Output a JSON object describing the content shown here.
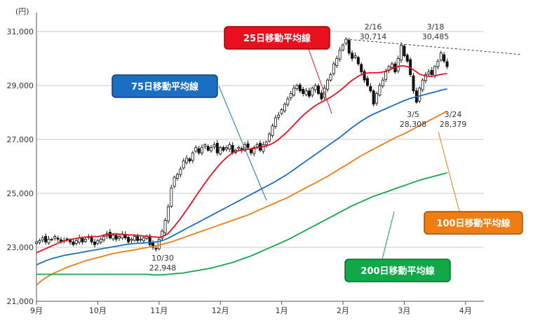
{
  "chart_data": {
    "type": "line",
    "title": "",
    "xlabel": "",
    "ylabel": "(円)",
    "ylim": [
      21000,
      31700
    ],
    "yticks": [
      21000,
      23000,
      25000,
      27000,
      29000,
      31000
    ],
    "ytick_labels": [
      "21,000",
      "23,000",
      "25,000",
      "27,000",
      "29,000",
      "31,000"
    ],
    "xtick_labels": [
      "9月",
      "10月",
      "11月",
      "12月",
      "1月",
      "2月",
      "3月",
      "4月"
    ],
    "month_start_index": [
      0,
      20,
      40,
      60,
      80,
      100,
      120,
      140
    ],
    "price_daily_close_approx": [
      23200,
      23250,
      23350,
      23200,
      23300,
      23300,
      23400,
      23300,
      23200,
      23250,
      23300,
      23200,
      23100,
      23250,
      23350,
      23200,
      23300,
      23400,
      23200,
      23100,
      23250,
      23300,
      23400,
      23500,
      23350,
      23450,
      23300,
      23400,
      23500,
      23350,
      23200,
      23300,
      23400,
      23250,
      23300,
      23350,
      23400,
      23100,
      23000,
      22950,
      23300,
      23600,
      24000,
      24500,
      25200,
      25600,
      25700,
      25900,
      26200,
      26300,
      26200,
      26500,
      26700,
      26500,
      26700,
      26800,
      26600,
      26700,
      26800,
      26500,
      26700,
      26600,
      26700,
      26800,
      26500,
      26600,
      26700,
      26600,
      26800,
      26700,
      26500,
      26700,
      26800,
      26600,
      26800,
      26900,
      27200,
      27500,
      27800,
      27900,
      28100,
      28300,
      28500,
      28700,
      28900,
      29000,
      28800,
      28700,
      28800,
      28600,
      28900,
      29000,
      28700,
      28500,
      28900,
      29200,
      29400,
      29800,
      30000,
      30300,
      30500,
      30714,
      30200,
      30000,
      30100,
      29800,
      29500,
      29200,
      29000,
      28800,
      28308,
      28700,
      29000,
      29200,
      29500,
      29700,
      29800,
      29500,
      30000,
      30485,
      30100,
      29900,
      29400,
      28800,
      28379,
      28900,
      29200,
      29400,
      29500,
      29400,
      29700,
      29900,
      30200,
      29900,
      29700
    ],
    "series": [
      {
        "name": "25日移動平均線",
        "color": "#e8101e",
        "values": [
          22800,
          22850,
          22900,
          22950,
          23000,
          23050,
          23100,
          23150,
          23200,
          23230,
          23260,
          23290,
          23310,
          23330,
          23350,
          23370,
          23380,
          23390,
          23400,
          23400,
          23400,
          23420,
          23450,
          23470,
          23490,
          23500,
          23500,
          23490,
          23480,
          23470,
          23460,
          23460,
          23450,
          23440,
          23430,
          23420,
          23410,
          23400,
          23390,
          23380,
          23370,
          23400,
          23450,
          23520,
          23650,
          23780,
          23920,
          24070,
          24230,
          24390,
          24550,
          24720,
          24890,
          25060,
          25220,
          25380,
          25540,
          25690,
          25830,
          25970,
          26100,
          26220,
          26330,
          26420,
          26500,
          26550,
          26580,
          26600,
          26620,
          26630,
          26650,
          26670,
          26690,
          26710,
          26730,
          26760,
          26800,
          26850,
          26920,
          27000,
          27100,
          27200,
          27300,
          27420,
          27540,
          27660,
          27780,
          27890,
          27990,
          28080,
          28170,
          28250,
          28320,
          28380,
          28440,
          28500,
          28570,
          28640,
          28720,
          28810,
          28900,
          29000,
          29100,
          29190,
          29270,
          29340,
          29400,
          29440,
          29460,
          29470,
          29470,
          29470,
          29480,
          29500,
          29530,
          29570,
          29620,
          29670,
          29700,
          29730,
          29720,
          29700,
          29650,
          29580,
          29500,
          29420,
          29380,
          29350,
          29340,
          29340,
          29360,
          29380,
          29410,
          29430,
          29440
        ]
      },
      {
        "name": "75日移動平均線",
        "color": "#1a6fc2",
        "values": [
          22350,
          22400,
          22450,
          22500,
          22540,
          22580,
          22610,
          22640,
          22670,
          22700,
          22720,
          22740,
          22760,
          22780,
          22800,
          22820,
          22840,
          22860,
          22880,
          22900,
          22920,
          22940,
          22960,
          22980,
          23000,
          23020,
          23040,
          23060,
          23080,
          23100,
          23120,
          23130,
          23140,
          23150,
          23150,
          23160,
          23170,
          23180,
          23190,
          23200,
          23220,
          23250,
          23290,
          23340,
          23400,
          23460,
          23520,
          23580,
          23640,
          23700,
          23760,
          23820,
          23880,
          23940,
          24000,
          24060,
          24120,
          24180,
          24240,
          24300,
          24360,
          24420,
          24480,
          24540,
          24600,
          24660,
          24720,
          24780,
          24840,
          24900,
          24960,
          25020,
          25080,
          25140,
          25200,
          25260,
          25320,
          25380,
          25440,
          25510,
          25580,
          25650,
          25720,
          25800,
          25880,
          25960,
          26040,
          26120,
          26200,
          26280,
          26360,
          26440,
          26520,
          26600,
          26680,
          26760,
          26840,
          26920,
          27000,
          27080,
          27170,
          27260,
          27350,
          27440,
          27520,
          27600,
          27680,
          27750,
          27820,
          27880,
          27940,
          27990,
          28040,
          28090,
          28140,
          28190,
          28240,
          28290,
          28340,
          28390,
          28440,
          28480,
          28520,
          28550,
          28580,
          28610,
          28640,
          28670,
          28700,
          28730,
          28760,
          28790,
          28820,
          28850,
          28870
        ]
      },
      {
        "name": "100日移動平均線",
        "color": "#f07d12",
        "values": [
          21600,
          21700,
          21790,
          21870,
          21940,
          22000,
          22060,
          22110,
          22160,
          22210,
          22260,
          22300,
          22340,
          22380,
          22420,
          22460,
          22500,
          22530,
          22560,
          22590,
          22620,
          22650,
          22680,
          22710,
          22740,
          22770,
          22790,
          22810,
          22830,
          22850,
          22870,
          22890,
          22910,
          22930,
          22950,
          22970,
          22990,
          23010,
          23030,
          23050,
          23080,
          23110,
          23140,
          23170,
          23200,
          23240,
          23280,
          23320,
          23360,
          23400,
          23440,
          23480,
          23520,
          23560,
          23600,
          23640,
          23680,
          23720,
          23760,
          23800,
          23840,
          23880,
          23920,
          23960,
          24000,
          24040,
          24080,
          24120,
          24160,
          24200,
          24250,
          24300,
          24350,
          24400,
          24450,
          24500,
          24550,
          24600,
          24650,
          24700,
          24750,
          24800,
          24850,
          24910,
          24970,
          25030,
          25090,
          25150,
          25210,
          25270,
          25330,
          25390,
          25450,
          25510,
          25570,
          25630,
          25700,
          25770,
          25840,
          25910,
          25980,
          26050,
          26120,
          26190,
          26260,
          26330,
          26400,
          26460,
          26520,
          26580,
          26640,
          26700,
          26760,
          26820,
          26880,
          26940,
          27000,
          27060,
          27110,
          27160,
          27210,
          27270,
          27330,
          27390,
          27450,
          27510,
          27570,
          27630,
          27690,
          27750,
          27810,
          27870,
          27930,
          27990,
          28040
        ]
      },
      {
        "name": "200日移動平均線",
        "color": "#12a84a",
        "values": [
          22000,
          22000,
          22000,
          22000,
          22000,
          22000,
          22000,
          22000,
          22000,
          22000,
          22000,
          22000,
          22000,
          22000,
          22000,
          22000,
          22000,
          22000,
          22000,
          22000,
          22000,
          22000,
          22000,
          22000,
          22000,
          22000,
          22000,
          22000,
          22000,
          22000,
          22000,
          22000,
          22000,
          22000,
          22000,
          22000,
          22000,
          21990,
          21980,
          21980,
          21980,
          21980,
          21990,
          22000,
          22010,
          22020,
          22030,
          22040,
          22050,
          22070,
          22090,
          22110,
          22130,
          22150,
          22170,
          22190,
          22210,
          22230,
          22260,
          22290,
          22320,
          22350,
          22380,
          22410,
          22440,
          22480,
          22520,
          22560,
          22600,
          22640,
          22680,
          22730,
          22780,
          22830,
          22880,
          22930,
          22980,
          23030,
          23080,
          23130,
          23180,
          23230,
          23280,
          23340,
          23400,
          23460,
          23520,
          23580,
          23640,
          23700,
          23760,
          23820,
          23880,
          23940,
          24000,
          24060,
          24120,
          24180,
          24240,
          24300,
          24360,
          24420,
          24480,
          24540,
          24590,
          24640,
          24690,
          24740,
          24790,
          24840,
          24890,
          24930,
          24970,
          25010,
          25050,
          25090,
          25130,
          25170,
          25210,
          25250,
          25290,
          25330,
          25370,
          25410,
          25450,
          25490,
          25520,
          25550,
          25580,
          25610,
          25640,
          25670,
          25700,
          25730,
          25760
        ]
      }
    ],
    "annotations": [
      {
        "date": "10/30",
        "value": "22,948"
      },
      {
        "date": "2/16",
        "value": "30,714"
      },
      {
        "date": "3/18",
        "value": "30,485"
      },
      {
        "date": "3/5",
        "value": "28,308"
      },
      {
        "date": "3/24",
        "value": "28,379"
      }
    ],
    "trendline_from": {
      "index": 101,
      "value": 30714
    },
    "trendline_to": {
      "index": 146,
      "value": 30150
    },
    "legend_labels": {
      "ma25": "25日移動平均線",
      "ma75": "75日移動平均線",
      "ma100": "100日移動平均線",
      "ma200": "200日移動平均線"
    },
    "colors": {
      "ma25": "#e8101e",
      "ma75": "#1a6fc2",
      "ma100": "#f07d12",
      "ma200": "#12a84a",
      "grid": "#c8c8c8"
    },
    "grid": true
  }
}
